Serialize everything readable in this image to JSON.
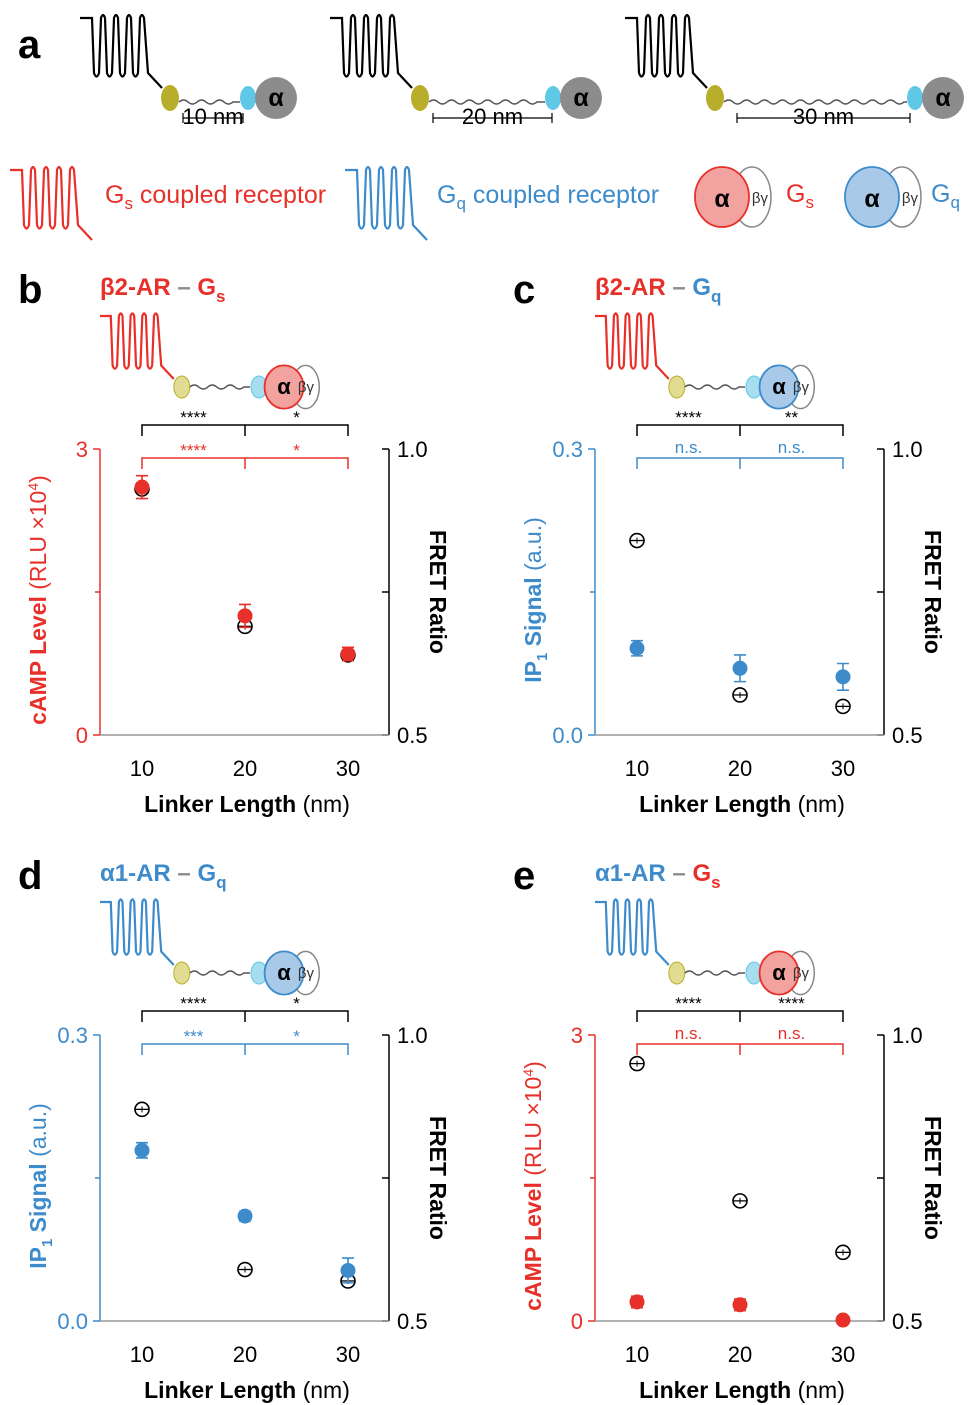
{
  "colors": {
    "red": "#e8302a",
    "blue": "#3d8bcb",
    "black": "#000000",
    "grey": "#8c8c8c",
    "olive": "#b8ae2c",
    "cyan": "#5fc8e6",
    "alpha_grey": "#8c8c8c"
  },
  "panel_a": {
    "label": "a",
    "linkers": [
      "10 nm",
      "20 nm",
      "30 nm"
    ],
    "alpha": "α",
    "legend": {
      "gs_receptor_main": "G",
      "gs_receptor_sub": "s",
      "gs_receptor_rest": " coupled receptor",
      "gq_receptor_main": "G",
      "gq_receptor_sub": "q",
      "gq_receptor_rest": " coupled receptor",
      "alpha": "α",
      "beta_gamma": "βγ",
      "gs_main": "G",
      "gs_sub": "s",
      "gq_main": "G",
      "gq_sub": "q"
    }
  },
  "chart_data": [
    {
      "panel": "b",
      "type": "scatter",
      "title_receptor": "β2-AR",
      "title_dash": " – ",
      "title_g_main": "G",
      "title_g_sub": "s",
      "xlabel_bold": "Linker Length",
      "xlabel_rest": " (nm)",
      "x": [
        10,
        20,
        30
      ],
      "xticks": [
        "10",
        "20",
        "30"
      ],
      "ylabel_bold": "cAMP Level",
      "ylabel_rest": " (RLU ×10",
      "ylabel_sup": "4",
      "ylabel_close": ")",
      "ylim": [
        0,
        3
      ],
      "yticks": [
        "0",
        "3"
      ],
      "y2label": "FRET Ratio",
      "y2lim": [
        0.5,
        1.0
      ],
      "y2ticks": [
        "0.5",
        "1.0"
      ],
      "signal": {
        "values": [
          2.6,
          1.25,
          0.85
        ],
        "err": [
          0.12,
          0.12,
          0.07
        ]
      },
      "fret": {
        "values": [
          0.93,
          0.69,
          0.64
        ],
        "err": [
          0.01,
          0.005,
          0.005
        ]
      },
      "sig_fret": [
        "****",
        "*"
      ],
      "sig_signal": [
        "****",
        "*"
      ]
    },
    {
      "panel": "c",
      "type": "scatter",
      "title_receptor": "β2-AR",
      "title_dash": " – ",
      "title_g_main": "G",
      "title_g_sub": "q",
      "xlabel_bold": "Linker Length",
      "xlabel_rest": " (nm)",
      "x": [
        10,
        20,
        30
      ],
      "xticks": [
        "10",
        "20",
        "30"
      ],
      "ylabel_bold": "IP",
      "ylabel_sub": "1",
      "ylabel_bold2": " Signal",
      "ylabel_rest": " (a.u.)",
      "ylim": [
        0,
        0.3
      ],
      "yticks": [
        "0.0",
        "0.3"
      ],
      "y2label": "FRET Ratio",
      "y2lim": [
        0.5,
        1.0
      ],
      "y2ticks": [
        "0.5",
        "1.0"
      ],
      "signal": {
        "values": [
          0.091,
          0.07,
          0.061
        ],
        "err": [
          0.008,
          0.014,
          0.014
        ]
      },
      "fret": {
        "values": [
          0.84,
          0.57,
          0.55
        ],
        "err": [
          0.005,
          0.004,
          0.004
        ]
      },
      "sig_fret": [
        "****",
        "**"
      ],
      "sig_signal": [
        "n.s.",
        "n.s."
      ]
    },
    {
      "panel": "d",
      "type": "scatter",
      "title_receptor": "α1-AR",
      "title_dash": " – ",
      "title_g_main": "G",
      "title_g_sub": "q",
      "xlabel_bold": "Linker Length",
      "xlabel_rest": " (nm)",
      "x": [
        10,
        20,
        30
      ],
      "xticks": [
        "10",
        "20",
        "30"
      ],
      "ylabel_bold": "IP",
      "ylabel_sub": "1",
      "ylabel_bold2": " Signal",
      "ylabel_rest": " (a.u.)",
      "ylim": [
        0,
        0.3
      ],
      "yticks": [
        "0.0",
        "0.3"
      ],
      "y2label": "FRET Ratio",
      "y2lim": [
        0.5,
        1.0
      ],
      "y2ticks": [
        "0.5",
        "1.0"
      ],
      "signal": {
        "values": [
          0.179,
          0.11,
          0.053
        ],
        "err": [
          0.008,
          0.005,
          0.013
        ]
      },
      "fret": {
        "values": [
          0.87,
          0.59,
          0.57
        ],
        "err": [
          0.004,
          0.004,
          0.004
        ]
      },
      "sig_fret": [
        "****",
        "*"
      ],
      "sig_signal": [
        "***",
        "*"
      ]
    },
    {
      "panel": "e",
      "type": "scatter",
      "title_receptor": "α1-AR",
      "title_dash": " – ",
      "title_g_main": "G",
      "title_g_sub": "s",
      "xlabel_bold": "Linker Length",
      "xlabel_rest": " (nm)",
      "x": [
        10,
        20,
        30
      ],
      "xticks": [
        "10",
        "20",
        "30"
      ],
      "ylabel_bold": "cAMP Level",
      "ylabel_rest": " (RLU ×10",
      "ylabel_sup": "4",
      "ylabel_close": ")",
      "ylim": [
        0,
        3
      ],
      "yticks": [
        "0",
        "3"
      ],
      "y2label": "FRET Ratio",
      "y2lim": [
        0.5,
        1.0
      ],
      "y2ticks": [
        "0.5",
        "1.0"
      ],
      "signal": {
        "values": [
          0.2,
          0.17,
          0.01
        ],
        "err": [
          0.06,
          0.06,
          0.02
        ]
      },
      "fret": {
        "values": [
          0.95,
          0.71,
          0.62
        ],
        "err": [
          0.005,
          0.005,
          0.005
        ]
      },
      "sig_fret": [
        "****",
        "****"
      ],
      "sig_signal": [
        "n.s.",
        "n.s."
      ]
    }
  ]
}
